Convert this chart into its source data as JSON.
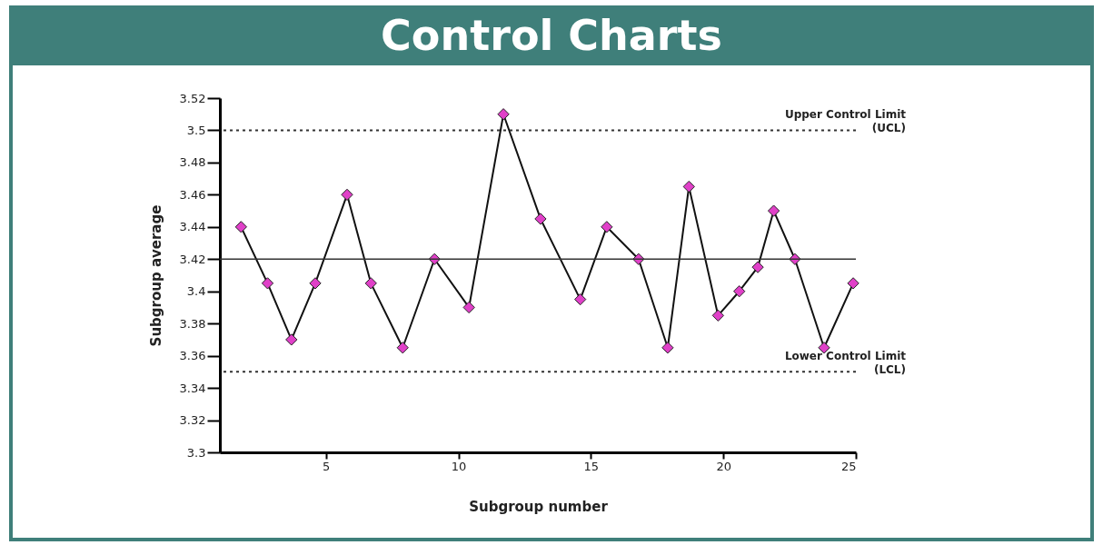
{
  "chart_data": {
    "type": "line",
    "title": "Control Charts",
    "xlabel": "Subgroup number",
    "ylabel": "Subgroup average",
    "x": [
      1.8,
      2.8,
      3.7,
      4.6,
      5.8,
      6.7,
      7.9,
      9.1,
      10.4,
      11.7,
      13.1,
      14.6,
      15.6,
      16.8,
      17.9,
      18.7,
      19.8,
      20.6,
      21.3,
      21.9,
      22.7,
      23.8,
      24.9
    ],
    "series": [
      {
        "color": "#e040c8",
        "values": [
          3.44,
          3.405,
          3.37,
          3.405,
          3.46,
          3.405,
          3.365,
          3.42,
          3.39,
          3.51,
          3.445,
          3.395,
          3.44,
          3.42,
          3.365,
          3.465,
          3.385,
          3.4,
          3.415,
          3.45,
          3.42,
          3.365,
          3.405
        ]
      }
    ],
    "xlim": [
      1,
      25
    ],
    "xticks": [
      5,
      10,
      15,
      20,
      25
    ],
    "ylim": [
      3.3,
      3.52
    ],
    "yticks": [
      3.3,
      3.32,
      3.34,
      3.36,
      3.38,
      3.4,
      3.42,
      3.44,
      3.46,
      3.48,
      3.5,
      3.52
    ],
    "ref_lines": [
      {
        "axis": "y",
        "value": 3.5,
        "label": "Upper Control Limit (UCL)",
        "line_style": "dotted"
      },
      {
        "axis": "y",
        "value": 3.42,
        "line_style": "solid"
      },
      {
        "axis": "y",
        "value": 3.35,
        "label": "Lower Control Limit (LCL)",
        "line_style": "dotted"
      }
    ],
    "grid": false,
    "marker": "diamond",
    "line_style": "solid"
  }
}
